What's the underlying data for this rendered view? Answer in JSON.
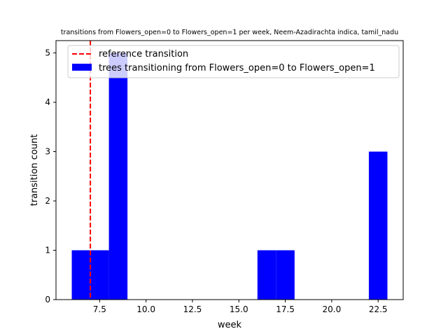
{
  "chart_data": {
    "type": "bar",
    "title": "transitions from Flowers_open=0 to Flowers_open=1 per week, Neem-Azadirachta indica, tamil_nadu",
    "xlabel": "week",
    "ylabel": "transition count",
    "xlim": [
      5.15,
      23.85
    ],
    "ylim": [
      0,
      5.25
    ],
    "x_ticks": [
      "7.5",
      "10.0",
      "12.5",
      "15.0",
      "17.5",
      "20.0",
      "22.5"
    ],
    "y_ticks": [
      "0",
      "1",
      "2",
      "3",
      "4",
      "5"
    ],
    "grid": false,
    "legend_position": "top-right",
    "bin_edges": [
      6,
      7,
      8,
      9,
      10,
      11,
      12,
      13,
      14,
      15,
      16,
      17,
      18,
      19,
      20,
      21,
      22,
      23
    ],
    "series": [
      {
        "name": "trees transitioning from Flowers_open=0 to Flowers_open=1",
        "type": "histogram",
        "color": "#0000ff",
        "values": [
          1,
          1,
          5,
          0,
          0,
          0,
          0,
          0,
          0,
          0,
          1,
          1,
          0,
          0,
          0,
          0,
          3
        ]
      }
    ],
    "reference_line": {
      "name": "reference transition",
      "x": 7,
      "color": "#ff0000",
      "style": "dashed"
    }
  }
}
